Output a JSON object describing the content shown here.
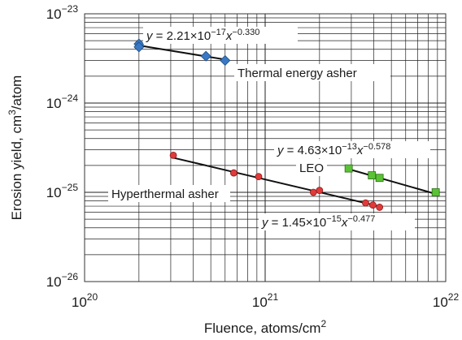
{
  "chart_data": {
    "type": "scatter",
    "xscale": "log",
    "yscale": "log",
    "xlim": [
      1e+20,
      1e+22
    ],
    "ylim": [
      1e-26,
      1e-23
    ],
    "grid": true,
    "xlabel": "Fluence, atoms/cm",
    "xlabel_sup": "2",
    "ylabel": "Erosion yield, cm",
    "ylabel_sup": "3",
    "ylabel_suffix": "/atom",
    "xticks": [
      {
        "base": "10",
        "exp": "20",
        "value": 1e+20
      },
      {
        "base": "10",
        "exp": "21",
        "value": 1e+21
      },
      {
        "base": "10",
        "exp": "22",
        "value": 1e+22
      }
    ],
    "yticks": [
      {
        "base": "10",
        "exp": "−23",
        "value": 1e-23
      },
      {
        "base": "10",
        "exp": "−24",
        "value": 1e-24
      },
      {
        "base": "10",
        "exp": "−25",
        "value": 1e-25
      },
      {
        "base": "10",
        "exp": "−26",
        "value": 1e-26
      }
    ],
    "series": [
      {
        "name": "Thermal energy asher",
        "marker": "diamond",
        "color": "#3a78c4",
        "x": [
          2e+20,
          2e+20,
          4.7e+20,
          6e+20
        ],
        "y": [
          4.6e-24,
          4.25e-24,
          3.35e-24,
          3e-24
        ],
        "fit": {
          "a": 2.21e-17,
          "b": -0.33,
          "xrange": [
            1.95e+20,
            6.3e+20
          ]
        },
        "equation": {
          "prefix": "y",
          "mid": " = 2.21×10",
          "exp1": "−17",
          "var": "x",
          "exp2": "−0.330"
        }
      },
      {
        "name": "LEO",
        "marker": "square",
        "color": "#5bc236",
        "x": [
          2.9e+21,
          3.9e+21,
          4.3e+21,
          8.8e+21
        ],
        "y": [
          1.85e-25,
          1.55e-25,
          1.45e-25,
          1e-25
        ],
        "fit": {
          "a": 4.63e-13,
          "b": -0.578,
          "xrange": [
            2.9e+21,
            8.8e+21
          ]
        },
        "equation": {
          "prefix": "y",
          "mid": " = 4.63×10",
          "exp1": "−13",
          "var": "x",
          "exp2": "−0.578"
        }
      },
      {
        "name": "Hyperthermal asher",
        "marker": "circle",
        "color": "#e03a3a",
        "x": [
          3.1e+20,
          6.7e+20,
          9.2e+20,
          1.85e+21,
          2e+21,
          3.6e+21,
          3.95e+21,
          4.3e+21
        ],
        "y": [
          2.6e-25,
          1.65e-25,
          1.5e-25,
          1e-25,
          1.05e-25,
          7.6e-26,
          7.2e-26,
          6.8e-26
        ],
        "fit": {
          "a": 1.45e-15,
          "b": -0.477,
          "xrange": [
            3.1e+20,
            4.3e+21
          ]
        },
        "equation": {
          "prefix": "y",
          "mid": " = 1.45×10",
          "exp1": "−15",
          "var": "x",
          "exp2": "−0.477"
        }
      }
    ]
  }
}
